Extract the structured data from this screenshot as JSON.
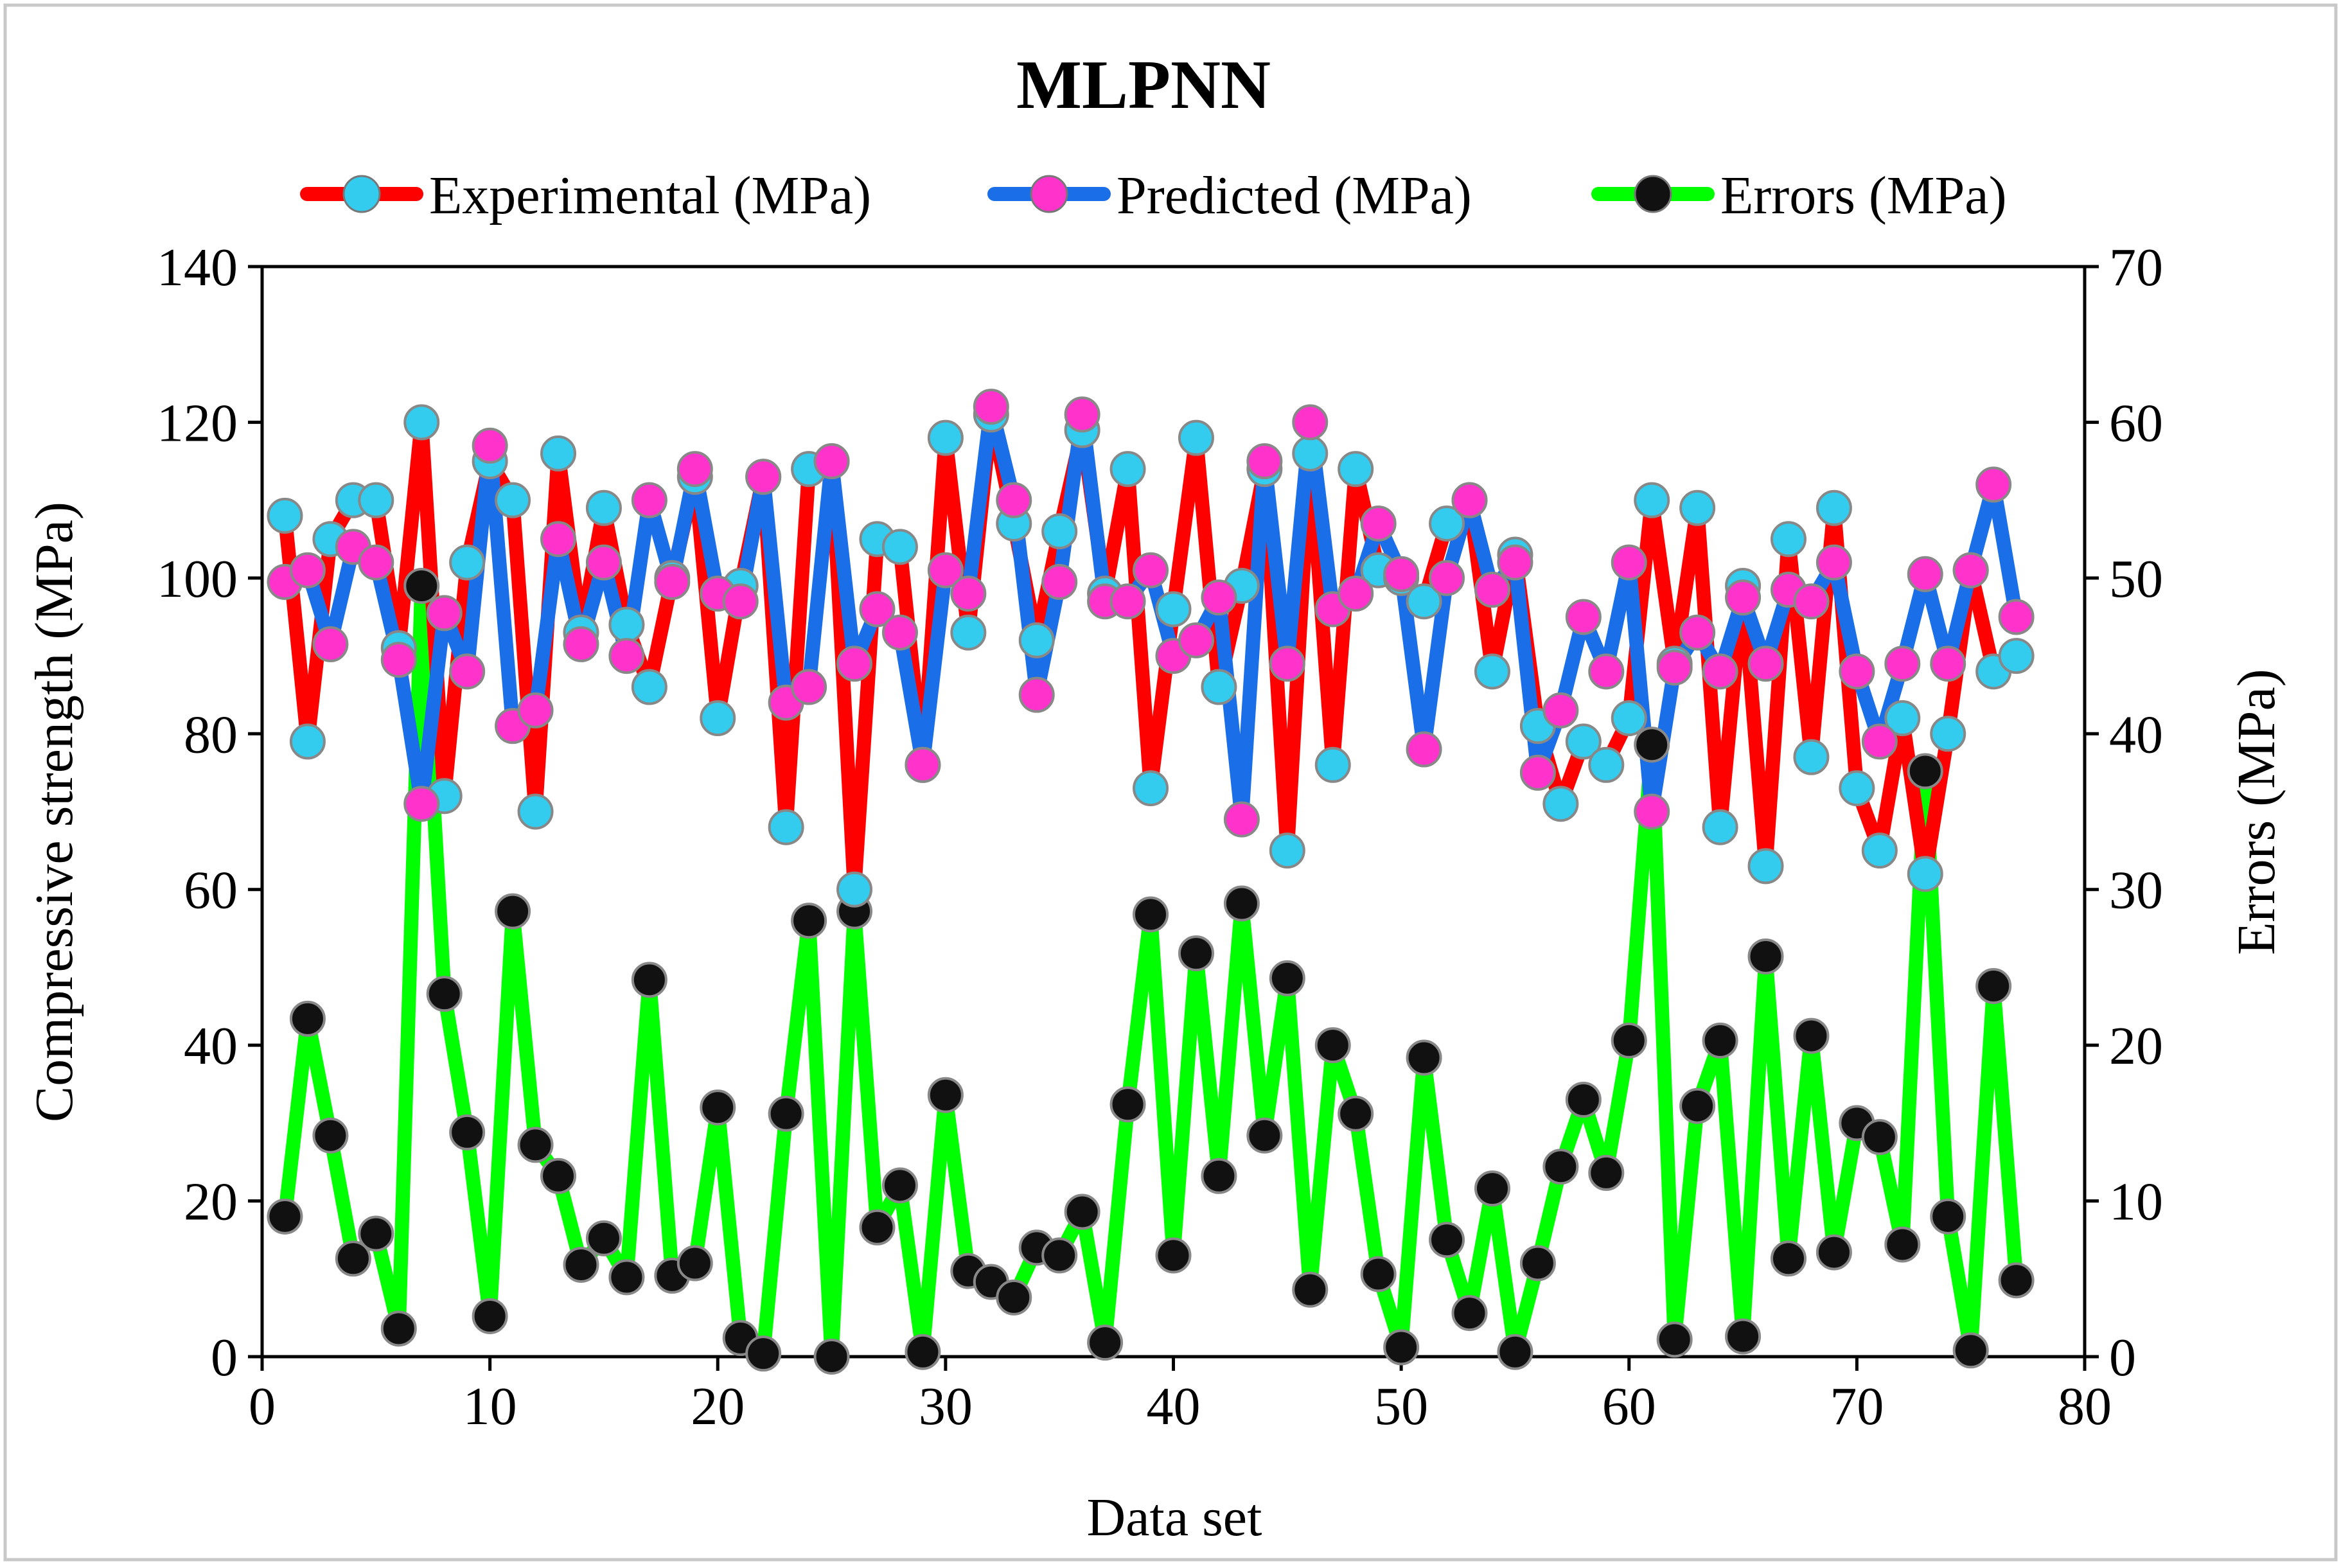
{
  "chart_data": {
    "type": "line",
    "title": "MLPNN",
    "xlabel": "Data set",
    "ylabel": "Compressive strength (MPa)",
    "y2label": "Errors (MPa)",
    "xlim": [
      0,
      80
    ],
    "ylim": [
      0,
      140
    ],
    "y2lim": [
      0,
      70
    ],
    "x_ticks": [
      0,
      10,
      20,
      30,
      40,
      50,
      60,
      70,
      80
    ],
    "y_ticks": [
      0,
      20,
      40,
      60,
      80,
      100,
      120,
      140
    ],
    "y2_ticks": [
      0,
      10,
      20,
      30,
      40,
      50,
      60,
      70
    ],
    "grid": false,
    "legend_position": "top",
    "x": [
      1,
      2,
      3,
      4,
      5,
      6,
      7,
      8,
      9,
      10,
      11,
      12,
      13,
      14,
      15,
      16,
      17,
      18,
      19,
      20,
      21,
      22,
      23,
      24,
      25,
      26,
      27,
      28,
      29,
      30,
      31,
      32,
      33,
      34,
      35,
      36,
      37,
      38,
      39,
      40,
      41,
      42,
      43,
      44,
      45,
      46,
      47,
      48,
      49,
      50,
      51,
      52,
      53,
      54,
      55,
      56,
      57,
      58,
      59,
      60,
      61,
      62,
      63,
      64,
      65,
      66,
      67,
      68,
      69,
      70,
      71,
      72,
      73,
      74,
      75,
      76,
      77
    ],
    "series": [
      {
        "name": "Experimental (MPa)",
        "axis": "left",
        "line_color": "#ff0000",
        "marker_color": "#33ccee",
        "values": [
          108,
          79,
          105,
          110,
          110,
          91,
          120,
          72,
          102,
          115,
          110,
          70,
          116,
          93,
          109,
          94,
          86,
          100,
          113,
          82,
          99,
          113,
          68,
          114,
          115,
          60,
          105,
          104,
          76,
          118,
          93,
          121,
          107,
          92,
          106,
          119,
          98,
          114,
          73,
          96,
          118,
          86,
          99,
          114,
          65,
          116,
          76,
          114,
          101,
          100,
          97,
          107,
          110,
          88,
          103,
          81,
          71,
          79,
          76,
          82,
          110,
          89,
          109,
          68,
          99,
          63,
          105,
          77,
          109,
          73,
          65,
          82,
          62,
          80,
          101,
          88,
          90
        ]
      },
      {
        "name": "Predicted (MPa)",
        "axis": "left",
        "line_color": "#1a6ee8",
        "marker_color": "#ff33cc",
        "values": [
          99.5,
          101,
          91.5,
          104,
          102,
          89.5,
          71,
          95.5,
          88,
          117,
          81,
          83,
          105,
          91.5,
          102,
          90,
          110,
          99.5,
          114,
          98,
          97,
          113,
          84,
          86,
          115,
          89,
          96,
          93,
          76,
          101,
          98,
          122,
          110,
          85,
          99.5,
          121,
          97,
          97,
          101,
          90,
          92,
          97.5,
          69,
          115,
          89,
          120,
          96,
          98,
          107,
          100.5,
          78,
          100,
          110,
          98.5,
          102,
          75,
          83,
          95,
          88,
          102,
          70,
          88.5,
          93,
          88,
          97.5,
          89,
          98.5,
          97,
          102,
          88,
          79,
          89,
          100.5,
          89,
          101,
          112,
          95
        ]
      },
      {
        "name": "Errors (MPa)",
        "axis": "right",
        "line_color": "#00ff00",
        "marker_color": "#111111",
        "values": [
          9,
          21.7,
          14.2,
          6.3,
          7.9,
          1.8,
          49.5,
          23.3,
          14.4,
          2.6,
          28.6,
          13.6,
          11.6,
          5.9,
          7.6,
          5.1,
          24.2,
          5.2,
          6,
          16,
          1.2,
          0.2,
          15.6,
          28,
          0,
          28.6,
          8.3,
          11,
          0.3,
          16.8,
          5.5,
          4.8,
          3.8,
          7,
          6.5,
          9.3,
          0.9,
          16.2,
          28.4,
          6.5,
          25.9,
          11.6,
          29.1,
          14.2,
          24.3,
          4.3,
          20,
          15.6,
          5.3,
          0.6,
          19.2,
          7.5,
          2.8,
          10.8,
          0.3,
          6,
          12.2,
          16.5,
          11.8,
          20.3,
          39.3,
          1.1,
          16.1,
          20.3,
          1.3,
          25.7,
          6.3,
          20.6,
          6.7,
          15,
          14.1,
          7.2,
          37.6,
          9,
          0.4,
          23.8,
          4.9
        ]
      }
    ]
  }
}
